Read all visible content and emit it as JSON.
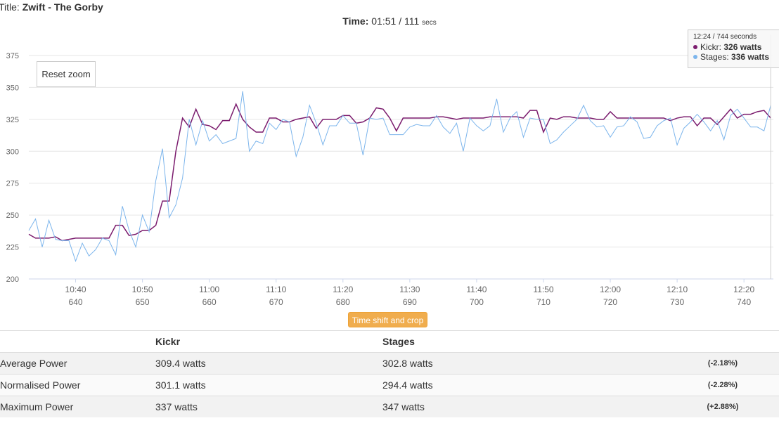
{
  "header": {
    "title_label": "Title:",
    "title": "Zwift - The Gorby",
    "time_label": "Time:",
    "time": "01:51",
    "separator": "/",
    "secs": "111",
    "secs_unit": "secs"
  },
  "reset_button": "Reset zoom",
  "crop_button": "Time shift and crop",
  "chart_data": {
    "type": "line",
    "x": [
      633,
      634,
      635,
      636,
      637,
      638,
      639,
      640,
      641,
      642,
      643,
      644,
      645,
      646,
      647,
      648,
      649,
      650,
      651,
      652,
      653,
      654,
      655,
      656,
      657,
      658,
      659,
      660,
      661,
      662,
      663,
      664,
      665,
      666,
      667,
      668,
      669,
      670,
      671,
      672,
      673,
      674,
      675,
      676,
      677,
      678,
      679,
      680,
      681,
      682,
      683,
      684,
      685,
      686,
      687,
      688,
      689,
      690,
      691,
      692,
      693,
      694,
      695,
      696,
      697,
      698,
      699,
      700,
      701,
      702,
      703,
      704,
      705,
      706,
      707,
      708,
      709,
      710,
      711,
      712,
      713,
      714,
      715,
      716,
      717,
      718,
      719,
      720,
      721,
      722,
      723,
      724,
      725,
      726,
      727,
      728,
      729,
      730,
      731,
      732,
      733,
      734,
      735,
      736,
      737,
      738,
      739,
      740,
      741,
      742,
      743,
      744
    ],
    "series": [
      {
        "name": "Kickr",
        "color": "#7b1c6e",
        "values": [
          235,
          232,
          232,
          232,
          233,
          230,
          231,
          232,
          232,
          232,
          232,
          232,
          232,
          242,
          242,
          234,
          235,
          238,
          238,
          242,
          261,
          261,
          300,
          326,
          319,
          333,
          321,
          320,
          317,
          324,
          324,
          337,
          325,
          319,
          315,
          315,
          326,
          326,
          323,
          323,
          325,
          326,
          327,
          318,
          325,
          325,
          325,
          328,
          328,
          322,
          323,
          326,
          334,
          333,
          326,
          316,
          326,
          326,
          326,
          326,
          326,
          327,
          327,
          326,
          325,
          326,
          326,
          326,
          326,
          327,
          327,
          327,
          327,
          327,
          326,
          332,
          332,
          315,
          326,
          325,
          327,
          327,
          326,
          326,
          326,
          325,
          325,
          331,
          326,
          326,
          326,
          326,
          326,
          326,
          326,
          326,
          324,
          326,
          327,
          327,
          320,
          326,
          326,
          321,
          327,
          333,
          326,
          329,
          329,
          331,
          332,
          326
        ]
      },
      {
        "name": "Stages",
        "color": "#7cb5ec",
        "values": [
          238,
          247,
          225,
          246,
          231,
          230,
          230,
          214,
          228,
          218,
          223,
          232,
          230,
          219,
          257,
          238,
          225,
          250,
          237,
          277,
          302,
          248,
          258,
          279,
          325,
          305,
          324,
          308,
          313,
          306,
          308,
          310,
          347,
          300,
          308,
          306,
          322,
          317,
          325,
          323,
          296,
          311,
          336,
          322,
          305,
          320,
          320,
          328,
          322,
          322,
          297,
          326,
          325,
          326,
          313,
          313,
          313,
          319,
          321,
          320,
          320,
          328,
          319,
          314,
          322,
          300,
          326,
          320,
          316,
          320,
          341,
          315,
          326,
          331,
          311,
          326,
          325,
          325,
          306,
          309,
          315,
          320,
          325,
          336,
          324,
          319,
          320,
          311,
          319,
          320,
          327,
          323,
          310,
          311,
          320,
          324,
          326,
          305,
          318,
          323,
          329,
          323,
          316,
          324,
          309,
          328,
          333,
          326,
          319,
          319,
          316,
          336
        ]
      }
    ],
    "xlim": [
      633,
      744.4
    ],
    "xticks": [
      {
        "value": 640,
        "label": "10:40"
      },
      {
        "value": 650,
        "label": "10:50"
      },
      {
        "value": 660,
        "label": "11:00"
      },
      {
        "value": 670,
        "label": "11:10"
      },
      {
        "value": 680,
        "label": "11:20"
      },
      {
        "value": 690,
        "label": "11:30"
      },
      {
        "value": 700,
        "label": "11:40"
      },
      {
        "value": 710,
        "label": "11:50"
      },
      {
        "value": 720,
        "label": "12:00"
      },
      {
        "value": 730,
        "label": "12:10"
      },
      {
        "value": 740,
        "label": "12:20"
      }
    ],
    "ylim": [
      200,
      375
    ],
    "yticks": [
      200,
      225,
      250,
      275,
      300,
      325,
      350,
      375
    ],
    "grid": true,
    "tooltip": {
      "x": 744,
      "header": "12:24 / 744 seconds",
      "items": [
        {
          "label": "Kickr:",
          "value": "326 watts"
        },
        {
          "label": "Stages:",
          "value": "336 watts"
        }
      ]
    }
  },
  "table": {
    "header": [
      "Kickr",
      "Stages"
    ],
    "rows": [
      [
        "Average Power",
        "309.4 watts",
        "302.8 watts",
        "(-2.18%)"
      ],
      [
        "Normalised Power",
        "301.1 watts",
        "294.4 watts",
        "(-2.28%)"
      ],
      [
        "Maximum Power",
        "337 watts",
        "347 watts",
        "(+2.88%)"
      ]
    ]
  }
}
